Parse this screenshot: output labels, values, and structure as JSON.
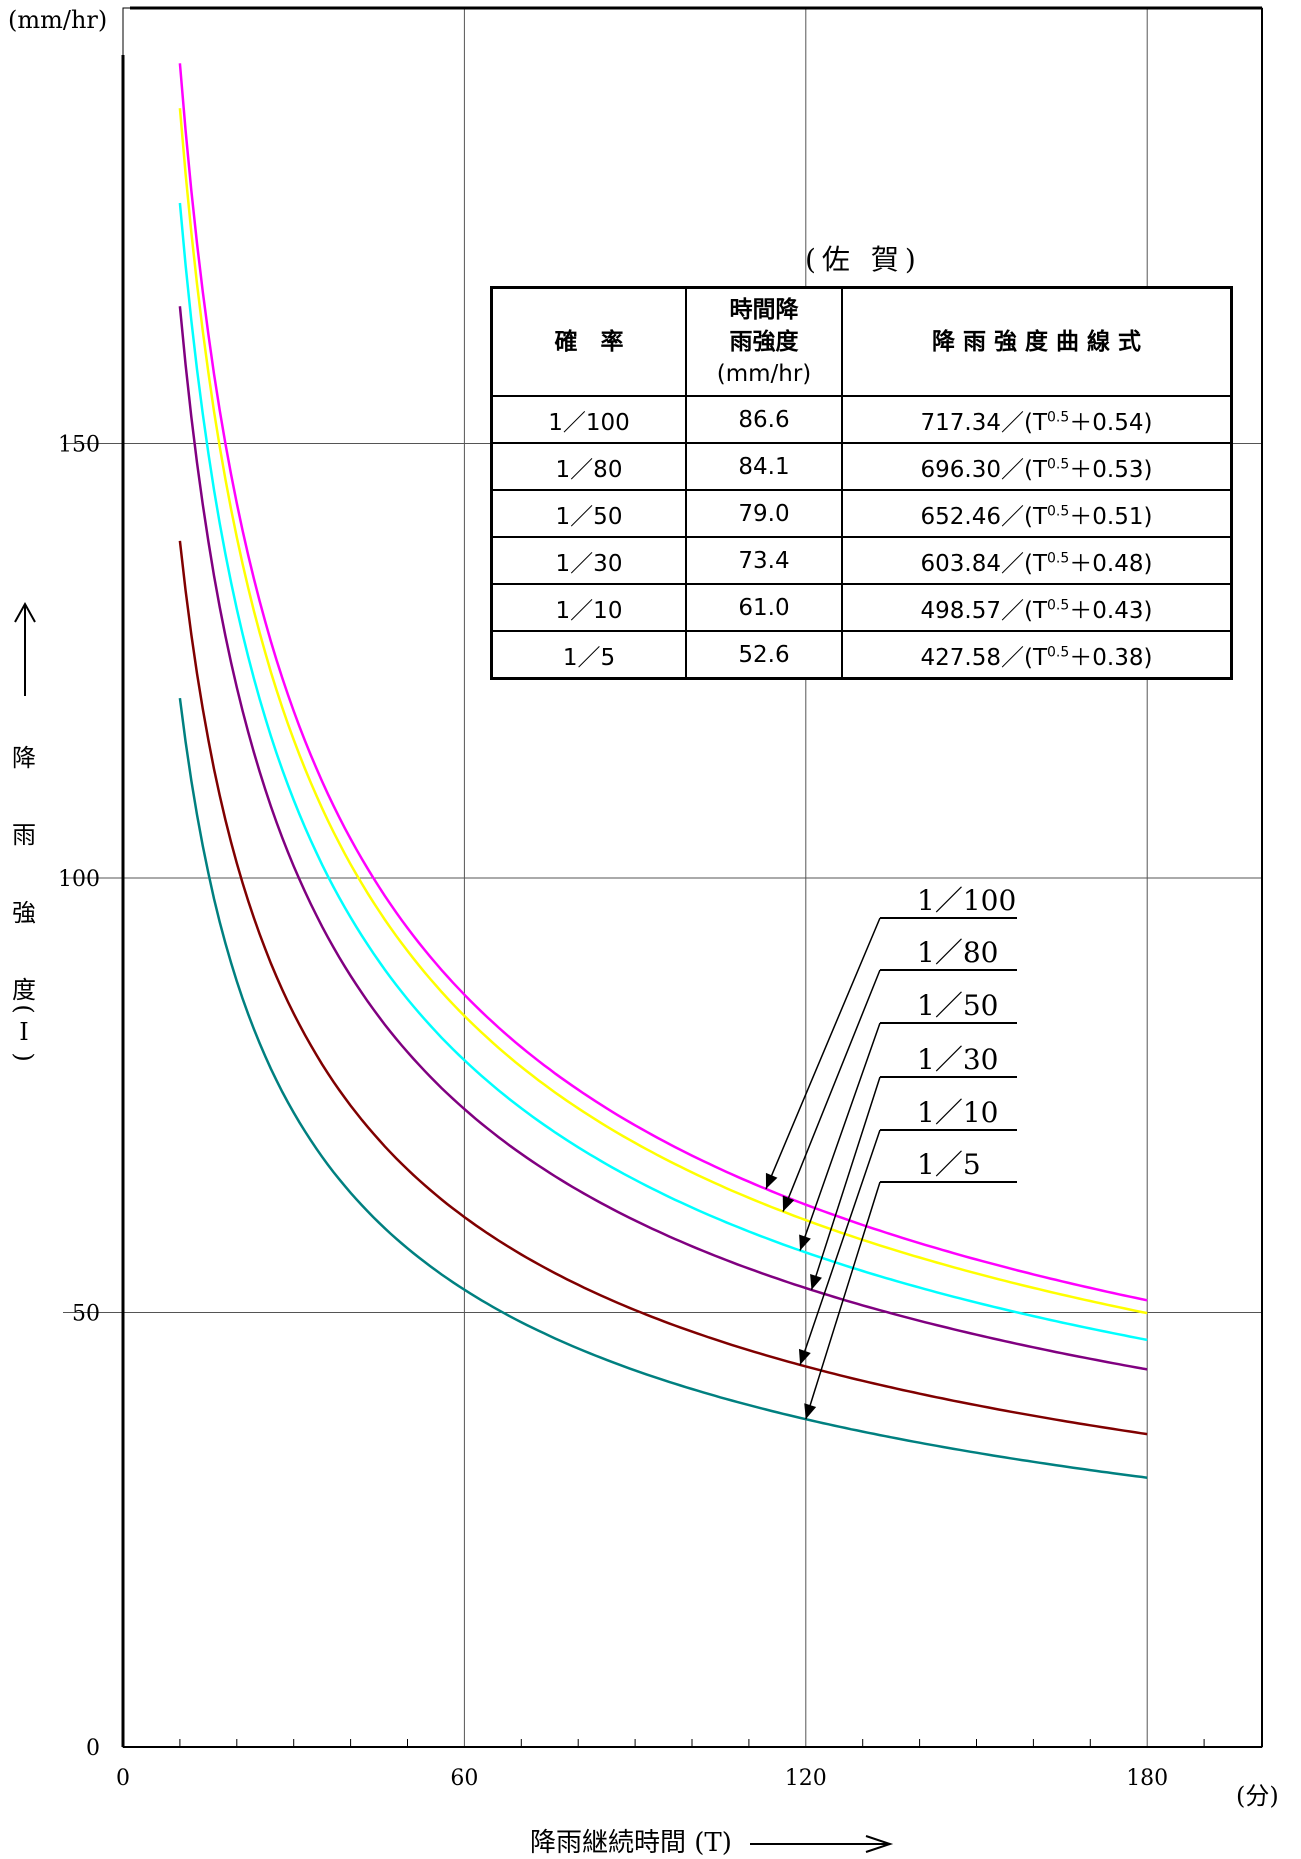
{
  "chart_data": {
    "type": "line",
    "x": [
      10,
      180
    ],
    "xlim": [
      0,
      200
    ],
    "ylim": [
      0,
      200
    ],
    "x_ticks": [
      "0",
      "60",
      "120",
      "180"
    ],
    "y_ticks": [
      "0",
      "50",
      "100",
      "150"
    ],
    "y_unit": "(mm/hr)",
    "x_unit": "(分)",
    "x_title": "降雨継続時間 (T)",
    "y_title_chars": [
      "降",
      "雨",
      "強",
      "度",
      "(",
      "I",
      ")"
    ],
    "y_arrow": "→",
    "x_arrow": "→",
    "series": [
      {
        "name": "1/100",
        "label": "1／100",
        "a": 717.34,
        "b": 0.54,
        "color": "#ff00ff"
      },
      {
        "name": "1/80",
        "label": "1／80",
        "a": 696.3,
        "b": 0.53,
        "color": "#ffff00"
      },
      {
        "name": "1/50",
        "label": "1／50",
        "a": 652.46,
        "b": 0.51,
        "color": "#00ffff"
      },
      {
        "name": "1/30",
        "label": "1／30",
        "a": 603.84,
        "b": 0.48,
        "color": "#800080"
      },
      {
        "name": "1/10",
        "label": "1／10",
        "a": 498.57,
        "b": 0.43,
        "color": "#800000"
      },
      {
        "name": "1/5",
        "label": "1／5",
        "a": 427.58,
        "b": 0.38,
        "color": "#008080"
      }
    ],
    "grid": true
  },
  "table": {
    "title": "(佐 賀)",
    "headers": {
      "probability": "確　率",
      "intensity_l1": "時間降",
      "intensity_l2": "雨強度",
      "intensity_l3": "(mm/hr)",
      "formula": "降 雨 強 度 曲 線 式"
    },
    "rows": [
      {
        "prob": "1／100",
        "value": "86.6",
        "f_pre": "717.34／(T",
        "f_exp": "0.5",
        "f_post": "＋0.54)"
      },
      {
        "prob": "1／80",
        "value": "84.1",
        "f_pre": "696.30／(T",
        "f_exp": "0.5",
        "f_post": "＋0.53)"
      },
      {
        "prob": "1／50",
        "value": "79.0",
        "f_pre": "652.46／(T",
        "f_exp": "0.5",
        "f_post": "＋0.51)"
      },
      {
        "prob": "1／30",
        "value": "73.4",
        "f_pre": "603.84／(T",
        "f_exp": "0.5",
        "f_post": "＋0.48)"
      },
      {
        "prob": "1／10",
        "value": "61.0",
        "f_pre": "498.57／(T",
        "f_exp": "0.5",
        "f_post": "＋0.43)"
      },
      {
        "prob": "1／5",
        "value": "52.6",
        "f_pre": "427.58／(T",
        "f_exp": "0.5",
        "f_post": "＋0.38)"
      }
    ]
  }
}
